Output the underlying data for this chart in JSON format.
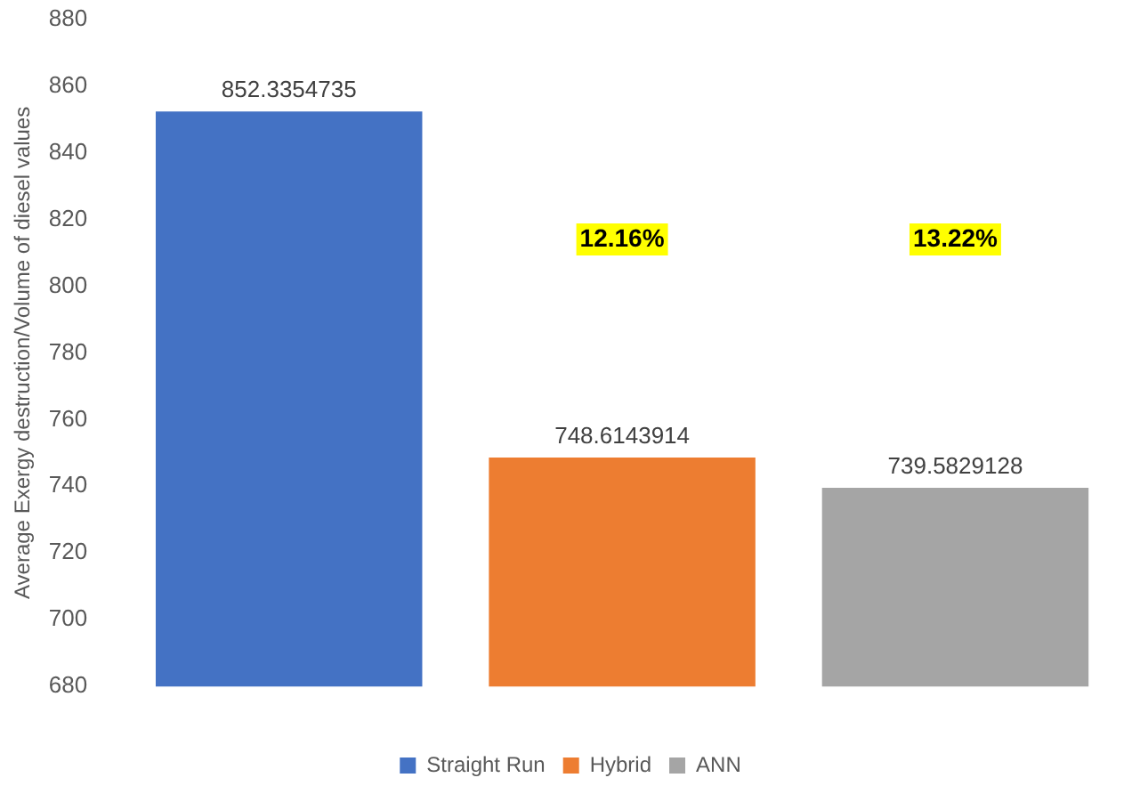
{
  "chart_data": {
    "type": "bar",
    "ylabel": "Average Exergy destruction/Volume of diesel values",
    "categories": [
      null
    ],
    "series": [
      {
        "name": "Straight Run",
        "color": "#4472c4",
        "values": [
          852.3354735
        ]
      },
      {
        "name": "Hybrid",
        "color": "#ed7d31",
        "values": [
          748.6143914
        ]
      },
      {
        "name": "ANN",
        "color": "#a5a5a5",
        "values": [
          739.5829128
        ]
      }
    ],
    "ylim": [
      680,
      880
    ],
    "yticks": [
      680,
      700,
      720,
      740,
      760,
      780,
      800,
      820,
      840,
      860,
      880
    ],
    "grid": false,
    "legend": "bottom",
    "data_labels": true,
    "annotations": [
      "12.16%",
      "13.22%"
    ]
  }
}
